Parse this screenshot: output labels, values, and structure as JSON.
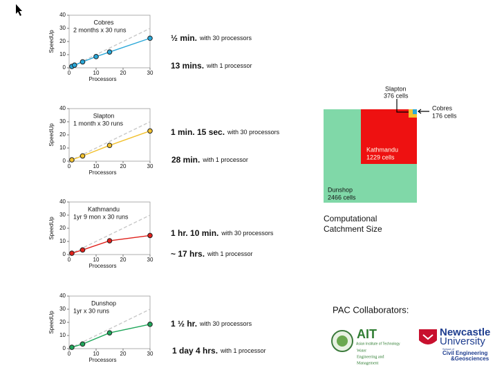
{
  "chart_data": [
    {
      "type": "line",
      "title": "Cobres",
      "subtitle": "2 months x 30 runs",
      "xlabel": "Processors",
      "ylabel": "SpeedUp",
      "xlim": [
        0,
        30
      ],
      "ylim": [
        0,
        40
      ],
      "xticks": [
        0,
        10,
        20,
        30
      ],
      "yticks": [
        0,
        10,
        20,
        30,
        40
      ],
      "series": [
        {
          "color": "#c8c8c8",
          "dashed": true,
          "x": [
            0,
            30
          ],
          "values": [
            0,
            30
          ]
        },
        {
          "color": "#29a7d8",
          "x": [
            1,
            2,
            5,
            10,
            15,
            30
          ],
          "values": [
            1,
            2,
            4.5,
            8.5,
            12,
            22.5
          ]
        }
      ]
    },
    {
      "type": "line",
      "title": "Slapton",
      "subtitle": "1 month x 30 runs",
      "xlabel": "Processors",
      "ylabel": "SpeedUp",
      "xlim": [
        0,
        30
      ],
      "ylim": [
        0,
        40
      ],
      "xticks": [
        0,
        10,
        20,
        30
      ],
      "yticks": [
        0,
        10,
        20,
        30,
        40
      ],
      "series": [
        {
          "color": "#c8c8c8",
          "dashed": true,
          "x": [
            0,
            30
          ],
          "values": [
            0,
            30
          ]
        },
        {
          "color": "#f2c12e",
          "x": [
            1,
            5,
            15,
            30
          ],
          "values": [
            1,
            4,
            12,
            23
          ]
        }
      ]
    },
    {
      "type": "line",
      "title": "Kathmandu",
      "subtitle": "1yr 9 mon x 30 runs",
      "xlabel": "Processors",
      "ylabel": "SpeedUp",
      "xlim": [
        0,
        30
      ],
      "ylim": [
        0,
        40
      ],
      "xticks": [
        0,
        10,
        20,
        30
      ],
      "yticks": [
        0,
        10,
        20,
        30,
        40
      ],
      "series": [
        {
          "color": "#c8c8c8",
          "dashed": true,
          "x": [
            0,
            30
          ],
          "values": [
            0,
            30
          ]
        },
        {
          "color": "#e0201b",
          "x": [
            1,
            5,
            15,
            30
          ],
          "values": [
            1,
            3.5,
            10.5,
            14.5
          ]
        }
      ]
    },
    {
      "type": "line",
      "title": "Dunshop",
      "subtitle": "1yr x 30 runs",
      "xlabel": "Processors",
      "ylabel": "SpeedUp",
      "xlim": [
        0,
        30
      ],
      "ylim": [
        0,
        40
      ],
      "xticks": [
        0,
        10,
        20,
        30
      ],
      "yticks": [
        0,
        10,
        20,
        30,
        40
      ],
      "series": [
        {
          "color": "#c8c8c8",
          "dashed": true,
          "x": [
            0,
            30
          ],
          "values": [
            0,
            30
          ]
        },
        {
          "color": "#1fa65a",
          "x": [
            1,
            5,
            15,
            30
          ],
          "values": [
            1,
            3.5,
            12,
            18.5
          ]
        }
      ]
    }
  ],
  "timings": [
    [
      {
        "bold": "½ min.",
        "rest": "with 30 processors"
      },
      {
        "bold": "13 mins.",
        "rest": "with 1 processor"
      }
    ],
    [
      {
        "bold": "1 min. 15 sec.",
        "rest": "with 30 processors"
      },
      {
        "bold": "28 min.",
        "rest": "with 1 processor"
      }
    ],
    [
      {
        "bold": "1 hr. 10 min.",
        "rest": "with 30 processors"
      },
      {
        "bold": "~ 17 hrs.",
        "rest": "with 1 processor"
      }
    ],
    [
      {
        "bold": "1 ½ hr.",
        "rest": "with 30 processors"
      },
      {
        "bold": "1 day 4 hrs.",
        "rest": "with 1 processor"
      }
    ]
  ],
  "catchment": {
    "title": [
      "Computational",
      "Catchment Size"
    ],
    "areas": [
      {
        "name": "Dunshop",
        "cells": "2466 cells"
      },
      {
        "name": "Kathmandu",
        "cells": "1229 cells"
      },
      {
        "name": "Slapton",
        "cells": "376 cells"
      },
      {
        "name": "Cobres",
        "cells": "176 cells"
      }
    ]
  },
  "collaborators": {
    "title": "PAC Collaborators:",
    "ait": {
      "name": "AIT",
      "full": "Asian Institute of Technology",
      "dept": [
        "Water",
        "Engineering and",
        "Management"
      ]
    },
    "newcastle": {
      "name": [
        "Newcastle",
        "University"
      ],
      "school": "School of",
      "dept": [
        "Civil Engineering",
        "&Geosciences"
      ]
    }
  }
}
